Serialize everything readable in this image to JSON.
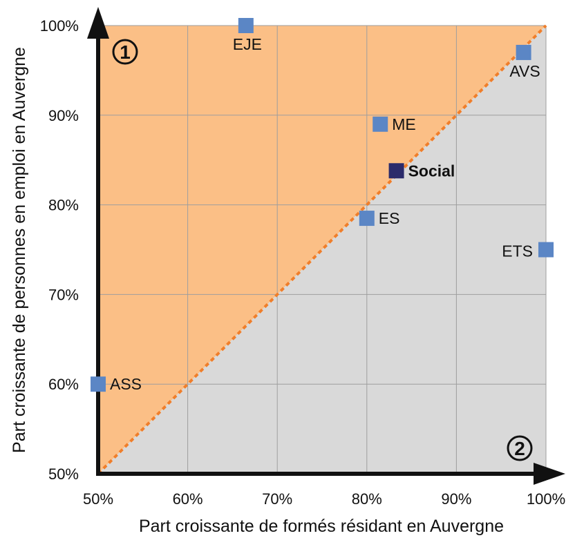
{
  "chart_data": {
    "type": "scatter",
    "xlabel": "Part croissante de formés résidant en Auvergne",
    "ylabel": "Part croissante de personnes en emploi en Auvergne",
    "xlim": [
      50,
      100
    ],
    "ylim": [
      50,
      100
    ],
    "x_ticks": [
      "50%",
      "60%",
      "70%",
      "80%",
      "90%",
      "100%"
    ],
    "y_ticks": [
      "50%",
      "60%",
      "70%",
      "80%",
      "90%",
      "100%"
    ],
    "grid": true,
    "diagonal": "x = y",
    "regions": [
      {
        "marker": "1",
        "fill": "#fbbf86"
      },
      {
        "marker": "2",
        "fill": "#d9d9d9"
      }
    ],
    "points": [
      {
        "label": "EJE",
        "x": 66.5,
        "y": 100,
        "color": "#5b86c5",
        "label_pos": "below"
      },
      {
        "label": "AVS",
        "x": 97.5,
        "y": 97,
        "color": "#5b86c5",
        "label_pos": "below"
      },
      {
        "label": "ME",
        "x": 81.5,
        "y": 89,
        "color": "#5b86c5",
        "label_pos": "right"
      },
      {
        "label": "Social",
        "x": 83.3,
        "y": 83.8,
        "color": "#2b2b6b",
        "label_pos": "right",
        "bold": true
      },
      {
        "label": "ES",
        "x": 80,
        "y": 78.5,
        "color": "#5b86c5",
        "label_pos": "right"
      },
      {
        "label": "ETS",
        "x": 100,
        "y": 75,
        "color": "#5b86c5",
        "label_pos": "left"
      },
      {
        "label": "ASS",
        "x": 50,
        "y": 60,
        "color": "#5b86c5",
        "label_pos": "right"
      }
    ]
  },
  "colors": {
    "upper_region": "#fbbf86",
    "lower_region": "#d9d9d9",
    "diagonal": "#f07e2a",
    "axis": "#111111",
    "grid": "#9e9e9e"
  }
}
